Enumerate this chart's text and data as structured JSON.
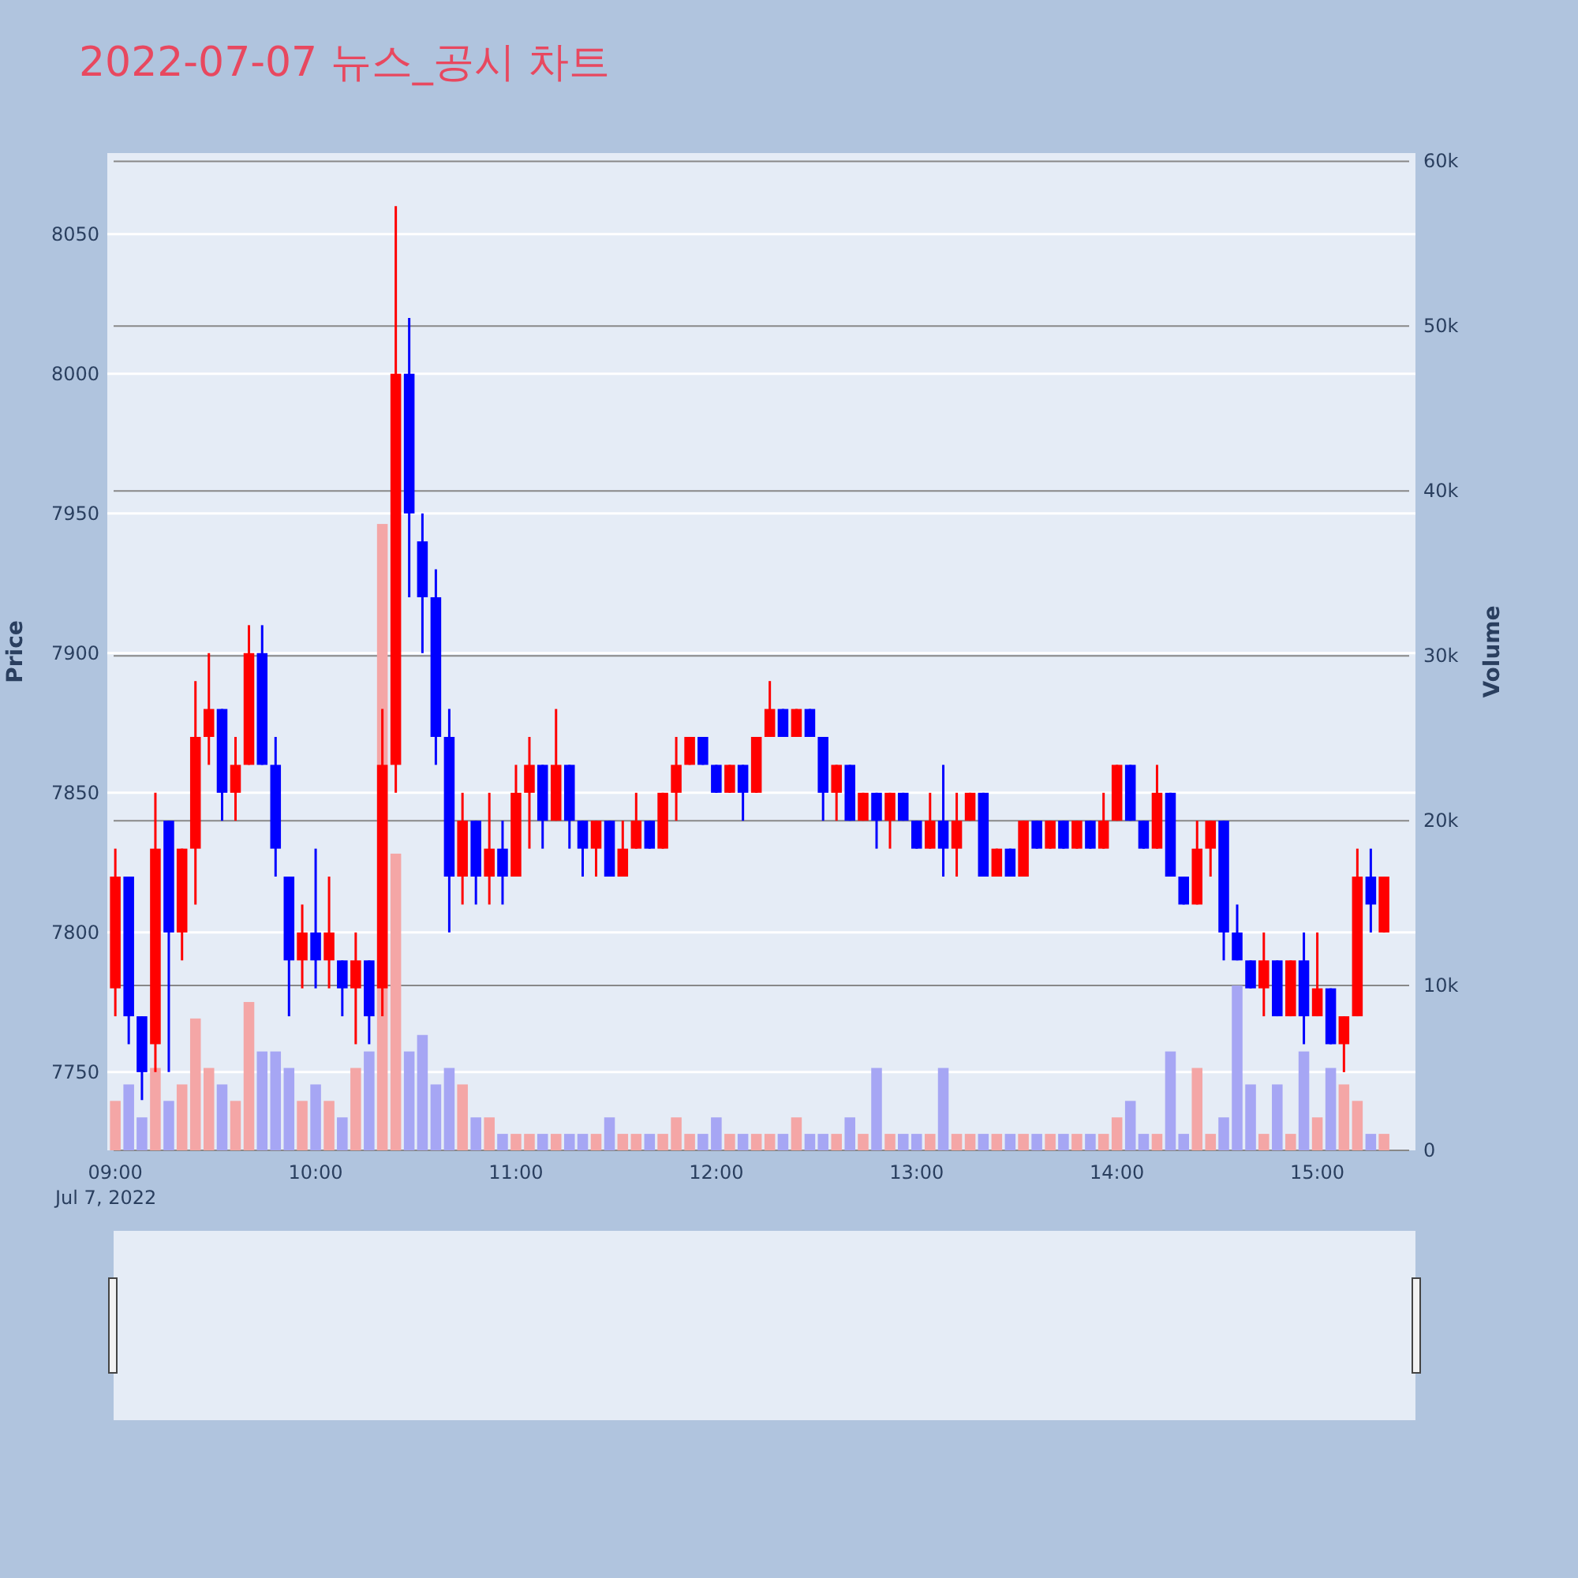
{
  "chart_data": {
    "type": "candlestick",
    "title": "2022-07-07 뉴스_공시 차트",
    "ylabel": "Price",
    "y2label": "Volume",
    "x": [
      9,
      9.067,
      9.133,
      9.2,
      9.267,
      9.333,
      9.4,
      9.467,
      9.533,
      9.6,
      9.667,
      9.733,
      9.8,
      9.867,
      9.933,
      10,
      10.067,
      10.133,
      10.2,
      10.267,
      10.333,
      10.4,
      10.467,
      10.533,
      10.6,
      10.667,
      10.733,
      10.8,
      10.867,
      10.933,
      11,
      11.067,
      11.133,
      11.2,
      11.267,
      11.333,
      11.4,
      11.467,
      11.533,
      11.6,
      11.667,
      11.733,
      11.8,
      11.867,
      11.933,
      12,
      12.067,
      12.133,
      12.2,
      12.267,
      12.333,
      12.4,
      12.467,
      12.533,
      12.6,
      12.667,
      12.733,
      12.8,
      12.867,
      12.933,
      13,
      13.067,
      13.133,
      13.2,
      13.267,
      13.333,
      13.4,
      13.467,
      13.533,
      13.6,
      13.667,
      13.733,
      13.8,
      13.867,
      13.933,
      14,
      14.067,
      14.133,
      14.2,
      14.267,
      14.333,
      14.4,
      14.467,
      14.533,
      14.6,
      14.667,
      14.733,
      14.8,
      14.867,
      14.933,
      15,
      15.067,
      15.133,
      15.2,
      15.267,
      15.333
    ],
    "ohlc": [
      [
        7780,
        7830,
        7770,
        7820
      ],
      [
        7820,
        7820,
        7760,
        7770
      ],
      [
        7770,
        7770,
        7740,
        7750
      ],
      [
        7760,
        7850,
        7750,
        7830
      ],
      [
        7840,
        7840,
        7750,
        7800
      ],
      [
        7800,
        7830,
        7790,
        7830
      ],
      [
        7830,
        7890,
        7810,
        7870
      ],
      [
        7870,
        7900,
        7860,
        7880
      ],
      [
        7880,
        7880,
        7840,
        7850
      ],
      [
        7850,
        7870,
        7840,
        7860
      ],
      [
        7860,
        7910,
        7860,
        7900
      ],
      [
        7900,
        7910,
        7860,
        7860
      ],
      [
        7860,
        7870,
        7820,
        7830
      ],
      [
        7820,
        7820,
        7770,
        7790
      ],
      [
        7790,
        7810,
        7780,
        7800
      ],
      [
        7800,
        7830,
        7780,
        7790
      ],
      [
        7790,
        7820,
        7780,
        7800
      ],
      [
        7790,
        7790,
        7770,
        7780
      ],
      [
        7780,
        7800,
        7760,
        7790
      ],
      [
        7790,
        7790,
        7760,
        7770
      ],
      [
        7780,
        7880,
        7770,
        7860
      ],
      [
        7860,
        8060,
        7850,
        8000
      ],
      [
        8000,
        8020,
        7920,
        7950
      ],
      [
        7940,
        7950,
        7900,
        7920
      ],
      [
        7920,
        7930,
        7860,
        7870
      ],
      [
        7870,
        7880,
        7800,
        7820
      ],
      [
        7820,
        7850,
        7810,
        7840
      ],
      [
        7840,
        7840,
        7810,
        7820
      ],
      [
        7820,
        7850,
        7810,
        7830
      ],
      [
        7830,
        7840,
        7810,
        7820
      ],
      [
        7820,
        7860,
        7820,
        7850
      ],
      [
        7850,
        7870,
        7830,
        7860
      ],
      [
        7860,
        7860,
        7830,
        7840
      ],
      [
        7840,
        7880,
        7840,
        7860
      ],
      [
        7860,
        7860,
        7830,
        7840
      ],
      [
        7840,
        7840,
        7820,
        7830
      ],
      [
        7830,
        7840,
        7820,
        7840
      ],
      [
        7840,
        7840,
        7820,
        7820
      ],
      [
        7820,
        7840,
        7820,
        7830
      ],
      [
        7830,
        7850,
        7830,
        7840
      ],
      [
        7840,
        7840,
        7830,
        7830
      ],
      [
        7830,
        7850,
        7830,
        7850
      ],
      [
        7850,
        7870,
        7840,
        7860
      ],
      [
        7860,
        7870,
        7860,
        7870
      ],
      [
        7870,
        7870,
        7860,
        7860
      ],
      [
        7860,
        7860,
        7850,
        7850
      ],
      [
        7850,
        7860,
        7850,
        7860
      ],
      [
        7860,
        7860,
        7840,
        7850
      ],
      [
        7850,
        7870,
        7850,
        7870
      ],
      [
        7870,
        7890,
        7870,
        7880
      ],
      [
        7880,
        7880,
        7870,
        7870
      ],
      [
        7870,
        7880,
        7870,
        7880
      ],
      [
        7880,
        7880,
        7870,
        7870
      ],
      [
        7870,
        7870,
        7840,
        7850
      ],
      [
        7850,
        7860,
        7840,
        7860
      ],
      [
        7860,
        7860,
        7840,
        7840
      ],
      [
        7840,
        7850,
        7840,
        7850
      ],
      [
        7850,
        7850,
        7830,
        7840
      ],
      [
        7840,
        7850,
        7830,
        7850
      ],
      [
        7850,
        7850,
        7840,
        7840
      ],
      [
        7840,
        7840,
        7830,
        7830
      ],
      [
        7830,
        7850,
        7830,
        7840
      ],
      [
        7840,
        7860,
        7820,
        7830
      ],
      [
        7830,
        7850,
        7820,
        7840
      ],
      [
        7840,
        7850,
        7840,
        7850
      ],
      [
        7850,
        7850,
        7820,
        7820
      ],
      [
        7820,
        7830,
        7820,
        7830
      ],
      [
        7830,
        7830,
        7820,
        7820
      ],
      [
        7820,
        7840,
        7820,
        7840
      ],
      [
        7840,
        7840,
        7830,
        7830
      ],
      [
        7830,
        7840,
        7830,
        7840
      ],
      [
        7840,
        7840,
        7830,
        7830
      ],
      [
        7830,
        7840,
        7830,
        7840
      ],
      [
        7840,
        7840,
        7830,
        7830
      ],
      [
        7830,
        7850,
        7830,
        7840
      ],
      [
        7840,
        7860,
        7840,
        7860
      ],
      [
        7860,
        7860,
        7840,
        7840
      ],
      [
        7840,
        7840,
        7830,
        7830
      ],
      [
        7830,
        7860,
        7830,
        7850
      ],
      [
        7850,
        7850,
        7820,
        7820
      ],
      [
        7820,
        7820,
        7810,
        7810
      ],
      [
        7810,
        7840,
        7810,
        7830
      ],
      [
        7830,
        7840,
        7820,
        7840
      ],
      [
        7840,
        7840,
        7790,
        7800
      ],
      [
        7800,
        7810,
        7790,
        7790
      ],
      [
        7790,
        7790,
        7780,
        7780
      ],
      [
        7780,
        7800,
        7770,
        7790
      ],
      [
        7790,
        7790,
        7770,
        7770
      ],
      [
        7770,
        7790,
        7770,
        7790
      ],
      [
        7790,
        7800,
        7760,
        7770
      ],
      [
        7770,
        7800,
        7770,
        7780
      ],
      [
        7780,
        7780,
        7760,
        7760
      ],
      [
        7760,
        7770,
        7750,
        7770
      ],
      [
        7770,
        7830,
        7770,
        7820
      ],
      [
        7820,
        7830,
        7800,
        7810
      ],
      [
        7800,
        7820,
        7800,
        7820
      ]
    ],
    "colors": [
      "#ff0000",
      "#0000ff",
      "#0000ff",
      "#ff0000",
      "#0000ff",
      "#ff0000",
      "#ff0000",
      "#ff0000",
      "#0000ff",
      "#ff0000",
      "#ff0000",
      "#0000ff",
      "#0000ff",
      "#0000ff",
      "#ff0000",
      "#0000ff",
      "#ff0000",
      "#0000ff",
      "#ff0000",
      "#0000ff",
      "#ff0000",
      "#ff0000",
      "#0000ff",
      "#0000ff",
      "#0000ff",
      "#0000ff",
      "#ff0000",
      "#0000ff",
      "#ff0000",
      "#0000ff",
      "#ff0000",
      "#ff0000",
      "#0000ff",
      "#ff0000",
      "#0000ff",
      "#0000ff",
      "#ff0000",
      "#0000ff",
      "#ff0000",
      "#ff0000",
      "#0000ff",
      "#ff0000",
      "#ff0000",
      "#ff0000",
      "#0000ff",
      "#0000ff",
      "#ff0000",
      "#0000ff",
      "#ff0000",
      "#ff0000",
      "#0000ff",
      "#ff0000",
      "#0000ff",
      "#0000ff",
      "#ff0000",
      "#0000ff",
      "#ff0000",
      "#0000ff",
      "#ff0000",
      "#0000ff",
      "#0000ff",
      "#ff0000",
      "#0000ff",
      "#ff0000",
      "#ff0000",
      "#0000ff",
      "#ff0000",
      "#0000ff",
      "#ff0000",
      "#0000ff",
      "#ff0000",
      "#0000ff",
      "#ff0000",
      "#0000ff",
      "#ff0000",
      "#ff0000",
      "#0000ff",
      "#0000ff",
      "#ff0000",
      "#0000ff",
      "#0000ff",
      "#ff0000",
      "#ff0000",
      "#0000ff",
      "#0000ff",
      "#0000ff",
      "#ff0000",
      "#0000ff",
      "#ff0000",
      "#0000ff",
      "#ff0000",
      "#0000ff",
      "#ff0000",
      "#ff0000",
      "#0000ff",
      "#ff0000"
    ],
    "series": [
      {
        "type": "bar",
        "axis": "y2",
        "values": [
          3000,
          4000,
          2000,
          5000,
          3000,
          4000,
          8000,
          5000,
          4000,
          3000,
          9000,
          6000,
          6000,
          5000,
          3000,
          4000,
          3000,
          2000,
          5000,
          6000,
          38000,
          18000,
          6000,
          7000,
          4000,
          5000,
          4000,
          2000,
          2000,
          1000,
          1000,
          1000,
          1000,
          1000,
          1000,
          1000,
          1000,
          2000,
          1000,
          1000,
          1000,
          1000,
          2000,
          1000,
          1000,
          2000,
          1000,
          1000,
          1000,
          1000,
          1000,
          2000,
          1000,
          1000,
          1000,
          2000,
          1000,
          5000,
          1000,
          1000,
          1000,
          1000,
          5000,
          1000,
          1000,
          1000,
          1000,
          1000,
          1000,
          1000,
          1000,
          1000,
          1000,
          1000,
          1000,
          2000,
          3000,
          1000,
          1000,
          6000,
          1000,
          5000,
          1000,
          2000,
          10000,
          4000,
          1000,
          4000,
          1000,
          6000,
          2000,
          5000,
          4000,
          3000,
          1000,
          1000
        ],
        "colors": [
          "#f4a6a6",
          "#a6a6f4",
          "#a6a6f4",
          "#f4a6a6",
          "#a6a6f4",
          "#f4a6a6",
          "#f4a6a6",
          "#f4a6a6",
          "#a6a6f4",
          "#f4a6a6",
          "#f4a6a6",
          "#a6a6f4",
          "#a6a6f4",
          "#a6a6f4",
          "#f4a6a6",
          "#a6a6f4",
          "#f4a6a6",
          "#a6a6f4",
          "#f4a6a6",
          "#a6a6f4",
          "#f4a6a6",
          "#f4a6a6",
          "#a6a6f4",
          "#a6a6f4",
          "#a6a6f4",
          "#a6a6f4",
          "#f4a6a6",
          "#a6a6f4",
          "#f4a6a6",
          "#a6a6f4",
          "#f4a6a6",
          "#f4a6a6",
          "#a6a6f4",
          "#f4a6a6",
          "#a6a6f4",
          "#a6a6f4",
          "#f4a6a6",
          "#a6a6f4",
          "#f4a6a6",
          "#f4a6a6",
          "#a6a6f4",
          "#f4a6a6",
          "#f4a6a6",
          "#f4a6a6",
          "#a6a6f4",
          "#a6a6f4",
          "#f4a6a6",
          "#a6a6f4",
          "#f4a6a6",
          "#f4a6a6",
          "#a6a6f4",
          "#f4a6a6",
          "#a6a6f4",
          "#a6a6f4",
          "#f4a6a6",
          "#a6a6f4",
          "#f4a6a6",
          "#a6a6f4",
          "#f4a6a6",
          "#a6a6f4",
          "#a6a6f4",
          "#f4a6a6",
          "#a6a6f4",
          "#f4a6a6",
          "#f4a6a6",
          "#a6a6f4",
          "#f4a6a6",
          "#a6a6f4",
          "#f4a6a6",
          "#a6a6f4",
          "#f4a6a6",
          "#a6a6f4",
          "#f4a6a6",
          "#a6a6f4",
          "#f4a6a6",
          "#f4a6a6",
          "#a6a6f4",
          "#a6a6f4",
          "#f4a6a6",
          "#a6a6f4",
          "#a6a6f4",
          "#f4a6a6",
          "#f4a6a6",
          "#a6a6f4",
          "#a6a6f4",
          "#a6a6f4",
          "#f4a6a6",
          "#a6a6f4",
          "#f4a6a6",
          "#a6a6f4",
          "#f4a6a6",
          "#a6a6f4",
          "#f4a6a6",
          "#f4a6a6",
          "#a6a6f4",
          "#f4a6a6"
        ]
      }
    ],
    "xlim": [
      8.96,
      15.49
    ],
    "xticks": [
      {
        "value": 9,
        "label": "09:00\nJul 7, 2022"
      },
      {
        "value": 10,
        "label": "10:00"
      },
      {
        "value": 11,
        "label": "11:00"
      },
      {
        "value": 12,
        "label": "12:00"
      },
      {
        "value": 13,
        "label": "13:00"
      },
      {
        "value": 14,
        "label": "14:00"
      },
      {
        "value": 15,
        "label": "15:00"
      }
    ],
    "ylim": [
      7722,
      8079
    ],
    "yticks": [
      7750,
      7800,
      7850,
      7900,
      7950,
      8000,
      8050
    ],
    "y2lim": [
      0,
      60500
    ],
    "y2ticks": [
      0,
      {
        "value": 10000,
        "label": "10k"
      },
      {
        "value": 20000,
        "label": "20k"
      },
      {
        "value": 30000,
        "label": "30k"
      },
      {
        "value": 40000,
        "label": "40k"
      },
      {
        "value": 50000,
        "label": "50k"
      },
      {
        "value": 60000,
        "label": "60k"
      }
    ],
    "grid": "y"
  }
}
